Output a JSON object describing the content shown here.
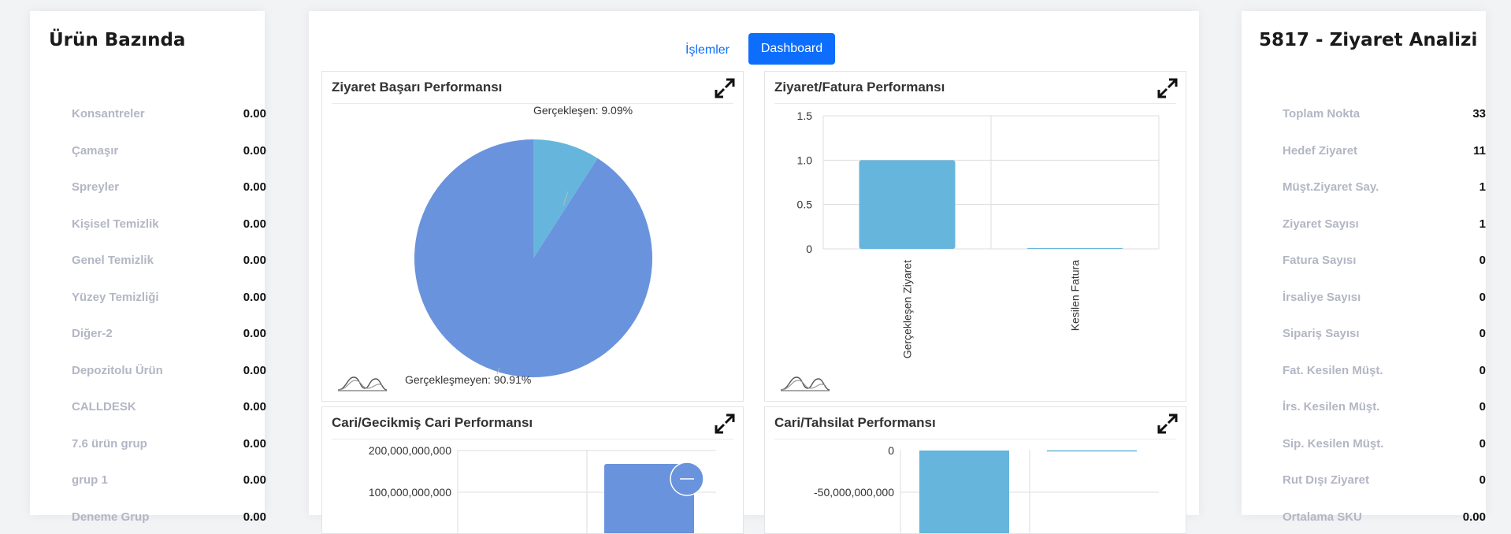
{
  "left_panel": {
    "title": "Ürün Bazında",
    "items": [
      {
        "label": "Konsantreler",
        "value": "0.00"
      },
      {
        "label": "Çamaşır",
        "value": "0.00"
      },
      {
        "label": "Spreyler",
        "value": "0.00"
      },
      {
        "label": "Kişisel Temizlik",
        "value": "0.00"
      },
      {
        "label": "Genel Temizlik",
        "value": "0.00"
      },
      {
        "label": "Yüzey Temizliği",
        "value": "0.00"
      },
      {
        "label": "Diğer-2",
        "value": "0.00"
      },
      {
        "label": "Depozitolu Ürün",
        "value": "0.00"
      },
      {
        "label": "CALLDESK",
        "value": "0.00"
      },
      {
        "label": "7.6 ürün grup",
        "value": "0.00"
      },
      {
        "label": "grup 1",
        "value": "0.00"
      },
      {
        "label": "Deneme Grup",
        "value": "0.00"
      }
    ]
  },
  "right_panel": {
    "title": "5817 - Ziyaret Analizi",
    "items": [
      {
        "label": "Toplam Nokta",
        "value": "33"
      },
      {
        "label": "Hedef Ziyaret",
        "value": "11"
      },
      {
        "label": "Müşt.Ziyaret Say.",
        "value": "1"
      },
      {
        "label": "Ziyaret Sayısı",
        "value": "1"
      },
      {
        "label": "Fatura Sayısı",
        "value": "0"
      },
      {
        "label": "İrsaliye Sayısı",
        "value": "0"
      },
      {
        "label": "Sipariş Sayısı",
        "value": "0"
      },
      {
        "label": "Fat. Kesilen Müşt.",
        "value": "0"
      },
      {
        "label": "İrs. Kesilen Müşt.",
        "value": "0"
      },
      {
        "label": "Sip. Kesilen Müşt.",
        "value": "0"
      },
      {
        "label": "Rut Dışı Ziyaret",
        "value": "0"
      },
      {
        "label": "Ortalama SKU",
        "value": "0.00"
      }
    ]
  },
  "tabs": {
    "islemler": "İşlemler",
    "dashboard": "Dashboard"
  },
  "cards": {
    "visit_success": "Ziyaret Başarı Performansı",
    "visit_invoice": "Ziyaret/Fatura Performansı",
    "current_overdue": "Cari/Gecikmiş Cari Performansı",
    "current_collection": "Cari/Tahsilat Performansı"
  },
  "colors": {
    "accent": "#0d6efd",
    "pie_main": "#6993dc",
    "pie_slice": "#66b5dc",
    "bar_light": "#66b5dc",
    "bar_dark": "#6993dc",
    "label_grey": "#b3b6c4"
  },
  "icons": [
    "expand-icon",
    "chart-legend-icon",
    "minus-icon"
  ],
  "chart_data": [
    {
      "type": "pie",
      "title": "Ziyaret Başarı Performansı",
      "slices": [
        {
          "name": "Gerçekleşen",
          "value": 9.09,
          "label": "Gerçekleşen: 9.09%"
        },
        {
          "name": "Gerçekleşmeyen",
          "value": 90.91,
          "label": "Gerçekleşmeyen: 90.91%"
        }
      ]
    },
    {
      "type": "bar",
      "title": "Ziyaret/Fatura Performansı",
      "categories": [
        "Gerçekleşen Ziyaret",
        "Kesilen Fatura"
      ],
      "values": [
        1,
        0
      ],
      "ylim": [
        0,
        1.5
      ],
      "yticks": [
        "1.5",
        "1.0",
        "0.5",
        "0"
      ],
      "grid": true
    },
    {
      "type": "bar",
      "title": "Cari/Gecikmiş Cari Performansı",
      "yticks": [
        "200,000,000,000",
        "100,000,000,000"
      ],
      "grid": true
    },
    {
      "type": "bar",
      "title": "Cari/Tahsilat Performansı",
      "yticks": [
        "0",
        "-50,000,000,000"
      ],
      "grid": true
    }
  ]
}
